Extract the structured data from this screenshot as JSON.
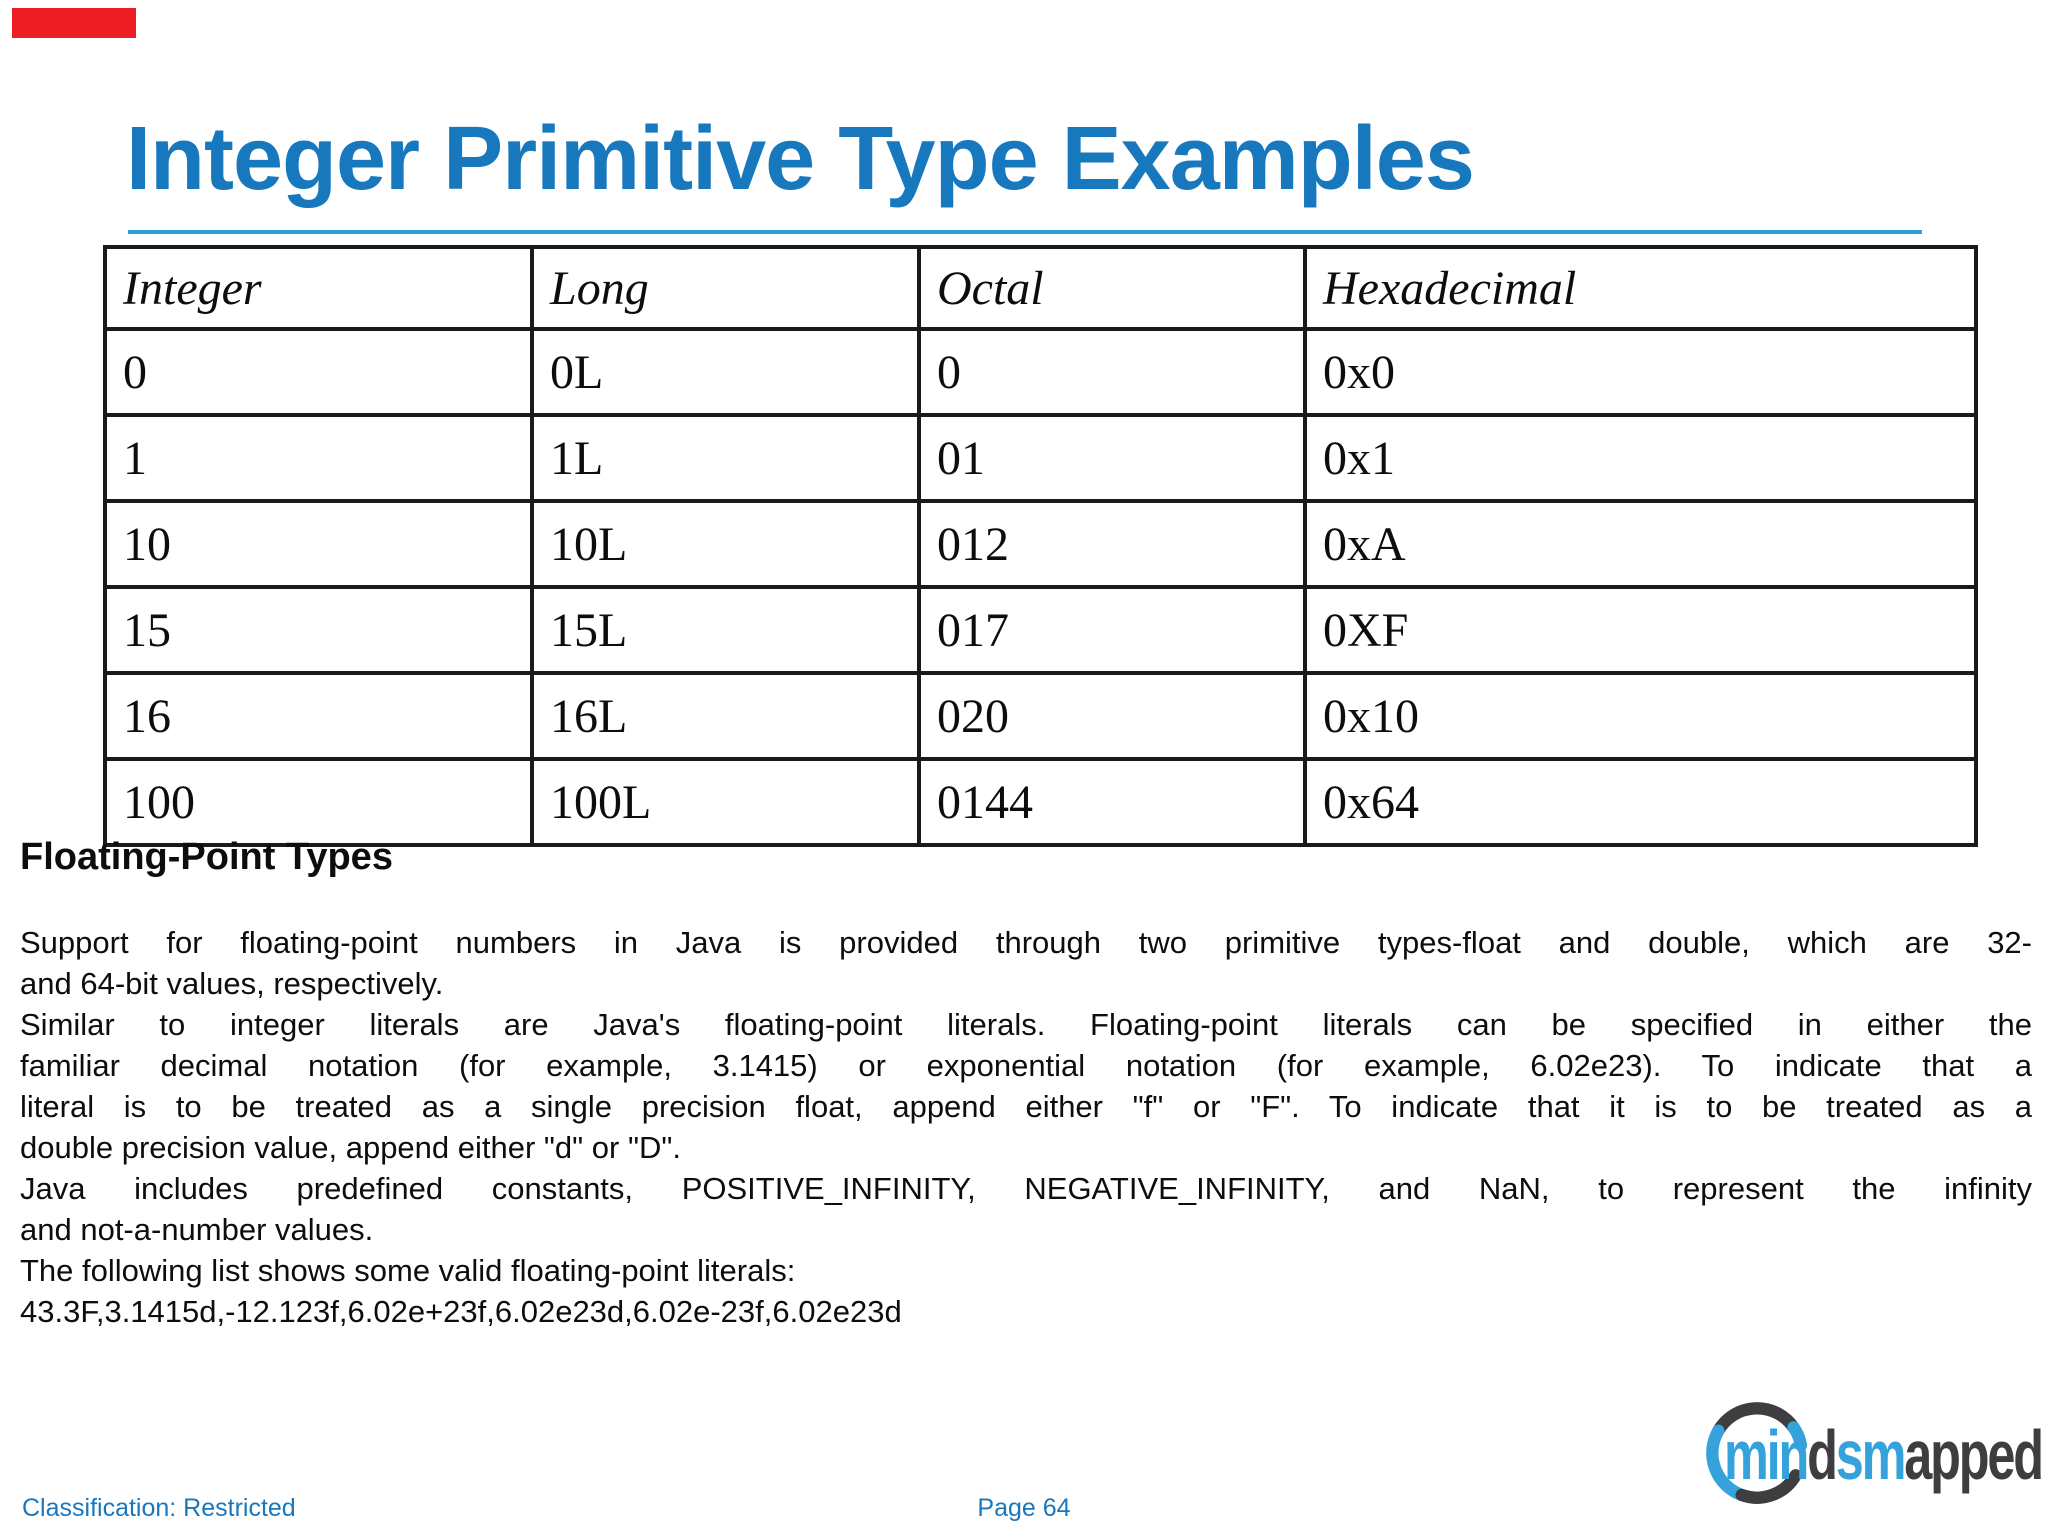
{
  "colors": {
    "title_blue": "#1778be",
    "underline_blue": "#2e9fd8",
    "footer_blue": "#1778be",
    "red_marker": "#ec1d24",
    "logo_blue": "#35a2dc",
    "logo_dark": "#3e3e40",
    "table_border": "#1a1a1a"
  },
  "header": {
    "title": "Integer Primitive Type Examples"
  },
  "table": {
    "columns": [
      "Integer",
      "Long",
      "Octal",
      "Hexadecimal"
    ],
    "rows": [
      [
        "0",
        "0L",
        "0",
        "0x0"
      ],
      [
        "1",
        "1L",
        "01",
        "0x1"
      ],
      [
        "10",
        "10L",
        "012",
        "0xA"
      ],
      [
        "15",
        "15L",
        "017",
        "0XF"
      ],
      [
        "16",
        "16L",
        "020",
        "0x10"
      ],
      [
        "100",
        "100L",
        "0144",
        "0x64"
      ]
    ]
  },
  "floating_point": {
    "heading": "Floating-Point Types",
    "lines": [
      {
        "text": "Support for floating-point numbers in Java is provided through two primitive types-float and double, which are 32-",
        "fill": true
      },
      {
        "text": "and 64-bit values, respectively.",
        "fill": false
      },
      {
        "text": "Similar to integer literals are Java's floating-point literals. Floating-point literals can be specified in either the",
        "fill": true
      },
      {
        "text": "familiar decimal notation (for example, 3.1415) or exponential notation (for example, 6.02e23). To indicate that a",
        "fill": true
      },
      {
        "text": "literal is to be treated as a single precision float, append either \"f\" or \"F\". To indicate that it is to be treated as a",
        "fill": true
      },
      {
        "text": "double precision value, append either \"d\" or \"D\".",
        "fill": false
      },
      {
        "text": "Java includes predefined constants, POSITIVE_INFINITY, NEGATIVE_INFINITY, and NaN, to represent the infinity",
        "fill": true
      },
      {
        "text": "and not-a-number values.",
        "fill": false
      },
      {
        "text": "The following list shows some valid floating-point literals:",
        "fill": false
      },
      {
        "text": "43.3F,3.1415d,-12.123f,6.02e+23f,6.02e23d,6.02e-23f,6.02e23d",
        "fill": false
      }
    ]
  },
  "footer": {
    "classification": "Classification: Restricted",
    "page_label": "Page 64"
  },
  "logo": {
    "segments": [
      {
        "text": "min",
        "color": "#35a2dc"
      },
      {
        "text": "d",
        "color": "#3e3e40"
      },
      {
        "text": "s",
        "color": "#35a2dc"
      },
      {
        "text": "m",
        "color": "#35a2dc"
      },
      {
        "text": "apped",
        "color": "#3e3e40"
      }
    ]
  }
}
